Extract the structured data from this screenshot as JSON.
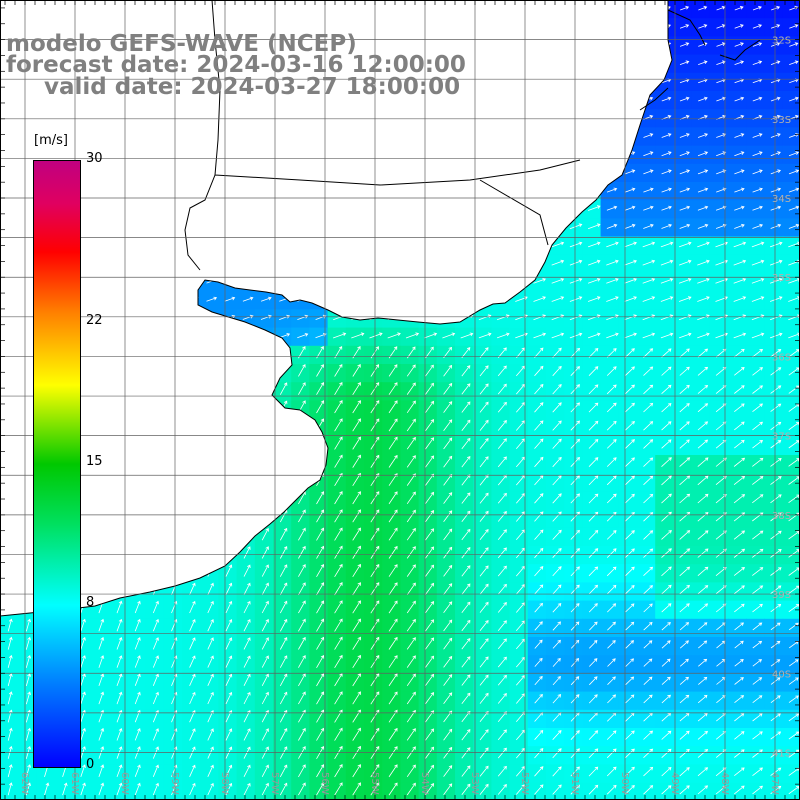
{
  "titles": {
    "line1": "modelo GEFS-WAVE (NCEP)",
    "line2": "forecast date: 2024-03-16 12:00:00",
    "line3": "valid date: 2024-03-27 18:00:00"
  },
  "colorbar": {
    "unit": "[m/s]",
    "ticks": [
      {
        "value": 30,
        "label": "30"
      },
      {
        "value": 22,
        "label": "22"
      },
      {
        "value": 15,
        "label": "15"
      },
      {
        "value": 8,
        "label": "8"
      },
      {
        "value": 0,
        "label": "0"
      }
    ],
    "min": 0,
    "max": 30
  },
  "map": {
    "lon_range": [
      -62.5,
      -46.5
    ],
    "lat_range": [
      -41.6,
      -31.5
    ],
    "grid_step_deg": 1,
    "lat_labels": [
      {
        "lat": -32,
        "label": "32S"
      },
      {
        "lat": -33,
        "label": "33S"
      },
      {
        "lat": -34,
        "label": "34S"
      },
      {
        "lat": -35,
        "label": "35S"
      },
      {
        "lat": -36,
        "label": "36S"
      },
      {
        "lat": -37,
        "label": "37S"
      },
      {
        "lat": -38,
        "label": "38S"
      },
      {
        "lat": -39,
        "label": "39S"
      },
      {
        "lat": -40,
        "label": "40S"
      },
      {
        "lat": -41,
        "label": "41S"
      }
    ],
    "lon_labels": [
      {
        "lon": -62,
        "label": "62W"
      },
      {
        "lon": -61,
        "label": "61W"
      },
      {
        "lon": -60,
        "label": "60W"
      },
      {
        "lon": -59,
        "label": "59W"
      },
      {
        "lon": -58,
        "label": "58W"
      },
      {
        "lon": -57,
        "label": "57W"
      },
      {
        "lon": -56,
        "label": "56W"
      },
      {
        "lon": -55,
        "label": "55W"
      },
      {
        "lon": -54,
        "label": "54W"
      },
      {
        "lon": -53,
        "label": "53W"
      },
      {
        "lon": -52,
        "label": "52W"
      },
      {
        "lon": -51,
        "label": "51W"
      },
      {
        "lon": -50,
        "label": "50W"
      },
      {
        "lon": -49,
        "label": "49W"
      },
      {
        "lon": -48,
        "label": "48W"
      },
      {
        "lon": -47,
        "label": "47W"
      }
    ],
    "colors": {
      "land": "#ffffff",
      "coast": "#000000",
      "grid": "#606060",
      "arrow": "#ffffff"
    }
  }
}
